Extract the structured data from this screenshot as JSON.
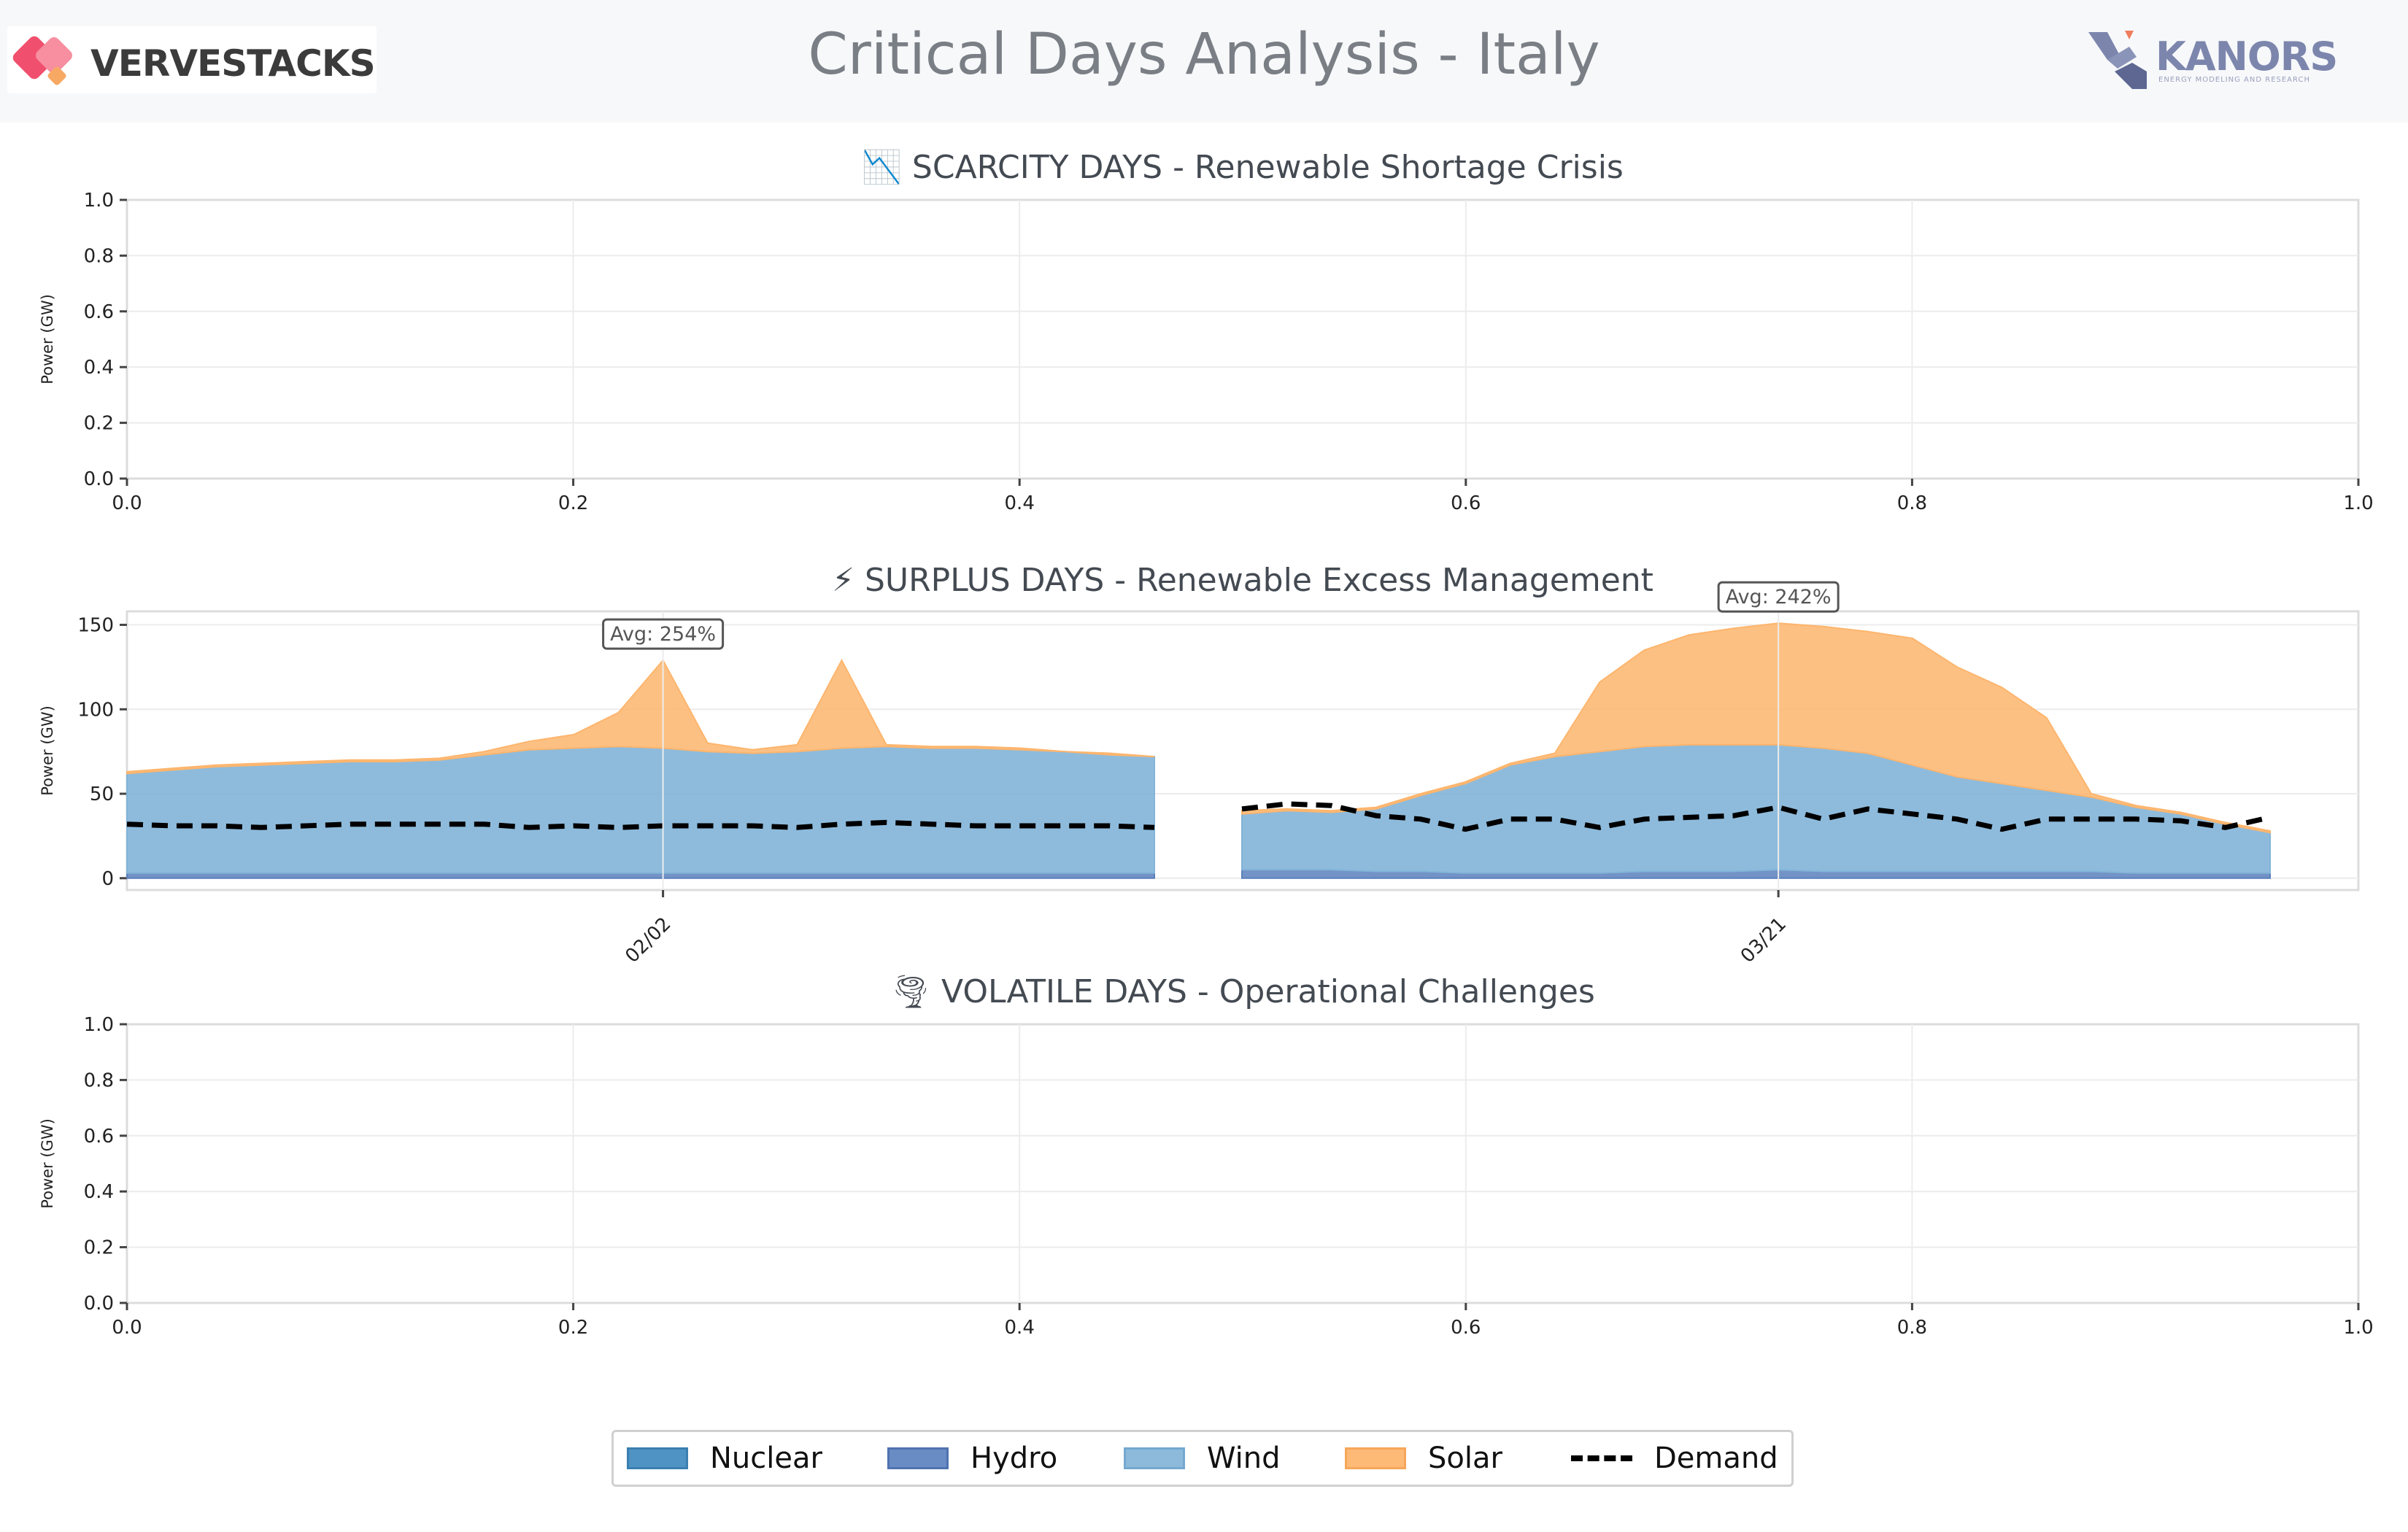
{
  "header": {
    "title": "Critical Days Analysis - Italy",
    "logo_left": "VERVESTACKS",
    "logo_right": "KANORS",
    "logo_right_subtitle": "ENERGY MODELING AND RESEARCH"
  },
  "colors": {
    "Nuclear": "#3a87bd",
    "Hydro": "#5b80bc",
    "Wind": "#82b4d8",
    "Solar": "#fdb56d",
    "Demand": "#000000"
  },
  "legend": [
    "Nuclear",
    "Hydro",
    "Wind",
    "Solar",
    "Demand"
  ],
  "chart_data": [
    {
      "type": "area",
      "title": "📉 SCARCITY DAYS - Renewable Shortage Crisis",
      "ylabel": "Power (GW)",
      "xlim": [
        0,
        1
      ],
      "ylim": [
        0,
        1
      ],
      "xticks": [
        "0.0",
        "0.2",
        "0.4",
        "0.6",
        "0.8",
        "1.0"
      ],
      "yticks": [
        "0.0",
        "0.2",
        "0.4",
        "0.6",
        "0.8",
        "1.0"
      ],
      "series": [],
      "grid": true
    },
    {
      "type": "area",
      "title": "⚡ SURPLUS DAYS - Renewable Excess Management",
      "ylabel": "Power (GW)",
      "ylim": [
        -7,
        158
      ],
      "yticks": [
        "0",
        "50",
        "100",
        "150"
      ],
      "xtick_labels": [
        "02/02",
        "03/21"
      ],
      "stacked": true,
      "grid": true,
      "days": [
        {
          "date": "02/02",
          "annotation": "Avg: 254%",
          "hours": [
            0,
            1,
            2,
            3,
            4,
            5,
            6,
            7,
            8,
            9,
            10,
            11,
            12,
            13,
            14,
            15,
            16,
            17,
            18,
            19,
            20,
            21,
            22,
            23
          ],
          "Nuclear": [
            0,
            0,
            0,
            0,
            0,
            0,
            0,
            0,
            0,
            0,
            0,
            0,
            0,
            0,
            0,
            0,
            0,
            0,
            0,
            0,
            0,
            0,
            0,
            0
          ],
          "Hydro": [
            3,
            3,
            3,
            3,
            3,
            3,
            3,
            3,
            3,
            3,
            3,
            3,
            3,
            3,
            3,
            3,
            3,
            3,
            3,
            3,
            3,
            3,
            3,
            3
          ],
          "Wind": [
            59,
            61,
            63,
            64,
            65,
            66,
            66,
            67,
            70,
            73,
            74,
            75,
            74,
            72,
            71,
            72,
            74,
            75,
            74,
            74,
            73,
            72,
            70,
            69
          ],
          "Solar": [
            1,
            1,
            1,
            1,
            1,
            1,
            1,
            1,
            2,
            5,
            8,
            20,
            52,
            5,
            2,
            4,
            52,
            1,
            1,
            1,
            1,
            0,
            1,
            0
          ],
          "Demand": [
            32,
            31,
            31,
            30,
            31,
            32,
            32,
            32,
            32,
            30,
            31,
            30,
            31,
            31,
            31,
            30,
            32,
            33,
            32,
            31,
            31,
            31,
            31,
            30
          ]
        },
        {
          "date": "03/21",
          "annotation": "Avg: 242%",
          "hours": [
            0,
            1,
            2,
            3,
            4,
            5,
            6,
            7,
            8,
            9,
            10,
            11,
            12,
            13,
            14,
            15,
            16,
            17,
            18,
            19,
            20,
            21,
            22,
            23
          ],
          "Nuclear": [
            0,
            0,
            0,
            0,
            0,
            0,
            0,
            0,
            0,
            0,
            0,
            0,
            0,
            0,
            0,
            0,
            0,
            0,
            0,
            0,
            0,
            0,
            0,
            0
          ],
          "Hydro": [
            5,
            5,
            5,
            4,
            4,
            3,
            3,
            3,
            3,
            4,
            4,
            4,
            5,
            4,
            4,
            4,
            4,
            4,
            4,
            4,
            3,
            3,
            3,
            3
          ],
          "Wind": [
            33,
            35,
            34,
            37,
            45,
            53,
            64,
            69,
            72,
            74,
            75,
            75,
            74,
            73,
            70,
            63,
            56,
            52,
            48,
            44,
            39,
            35,
            29,
            24
          ],
          "Solar": [
            2,
            1,
            1,
            1,
            1,
            1,
            1,
            2,
            41,
            57,
            65,
            69,
            72,
            72,
            72,
            75,
            65,
            57,
            43,
            2,
            1,
            1,
            1,
            1
          ],
          "Demand": [
            41,
            44,
            43,
            37,
            35,
            29,
            35,
            35,
            30,
            35,
            36,
            37,
            42,
            35,
            41,
            38,
            35,
            29,
            35,
            35,
            35,
            34,
            30,
            36
          ]
        }
      ]
    },
    {
      "type": "area",
      "title": "🌪 VOLATILE DAYS - Operational Challenges",
      "ylabel": "Power (GW)",
      "xlim": [
        0,
        1
      ],
      "ylim": [
        0,
        1
      ],
      "xticks": [
        "0.0",
        "0.2",
        "0.4",
        "0.6",
        "0.8",
        "1.0"
      ],
      "yticks": [
        "0.0",
        "0.2",
        "0.4",
        "0.6",
        "0.8",
        "1.0"
      ],
      "series": [],
      "grid": true
    }
  ]
}
